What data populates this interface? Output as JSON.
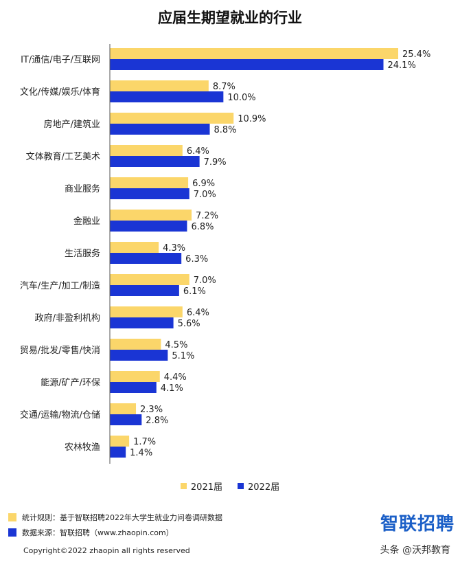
{
  "chart_data": {
    "type": "bar",
    "orientation": "horizontal",
    "title": "应届生期望就业的行业",
    "categories": [
      "IT/通信/电子/互联网",
      "文化/传媒/娱乐/体育",
      "房地产/建筑业",
      "文体教育/工艺美术",
      "商业服务",
      "金融业",
      "生活服务",
      "汽车/生产/加工/制造",
      "政府/非盈利机构",
      "贸易/批发/零售/快消",
      "能源/矿产/环保",
      "交通/运输/物流/仓储",
      "农林牧渔"
    ],
    "series": [
      {
        "name": "2021届",
        "color": "#fbd66a",
        "values": [
          25.4,
          8.7,
          10.9,
          6.4,
          6.9,
          7.2,
          4.3,
          7.0,
          6.4,
          4.5,
          4.4,
          2.3,
          1.7
        ]
      },
      {
        "name": "2022届",
        "color": "#1a35d4",
        "values": [
          24.1,
          10.0,
          8.8,
          7.9,
          7.0,
          6.8,
          6.3,
          6.1,
          5.6,
          5.1,
          4.1,
          2.8,
          1.4
        ]
      }
    ],
    "value_labels": [
      [
        "25.4%",
        "8.7%",
        "10.9%",
        "6.4%",
        "6.9%",
        "7.2%",
        "4.3%",
        "7.0%",
        "6.4%",
        "4.5%",
        "4.4%",
        "2.3%",
        "1.7%"
      ],
      [
        "24.1%",
        "10.0%",
        "8.8%",
        "7.9%",
        "7.0%",
        "6.8%",
        "6.3%",
        "6.1%",
        "5.6%",
        "5.1%",
        "4.1%",
        "2.8%",
        "1.4%"
      ]
    ],
    "xlim": [
      0,
      25.4
    ],
    "grid": false,
    "legend_position": "bottom"
  },
  "legend": {
    "item1": "2021届",
    "item2": "2022届"
  },
  "notes": {
    "rule": "统计规则：基于智联招聘2022年大学生就业力问卷调研数据",
    "source": "数据来源：智联招聘（www.zhaopin.com）"
  },
  "brand": "智联招聘",
  "copyright": "Copyright©2022 zhaopin all rights reserved",
  "watermark": "头条 @沃邦教育"
}
